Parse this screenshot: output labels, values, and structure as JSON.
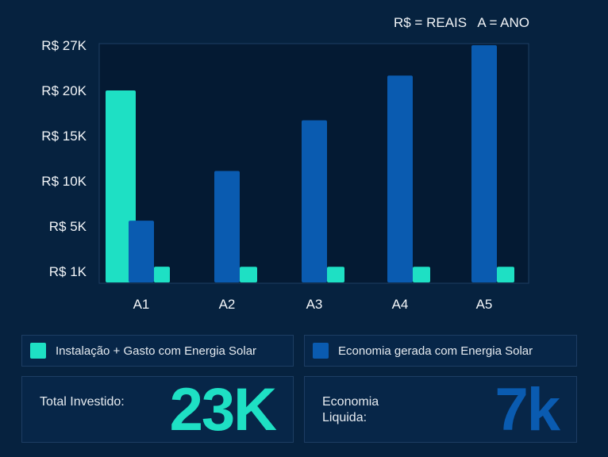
{
  "chart_data": {
    "type": "bar",
    "note": "R$ = REAIS   A = ANO",
    "categories": [
      "A1",
      "A2",
      "A3",
      "A4",
      "A5"
    ],
    "y_ticks": [
      "R$ 27K",
      "R$ 20K",
      "R$ 15K",
      "R$ 10K",
      "R$ 5K",
      "R$ 1K"
    ],
    "y_tick_values": [
      27,
      20,
      15,
      10,
      5,
      1
    ],
    "ylim": [
      1,
      27
    ],
    "grid": false,
    "legend_position": "bottom",
    "series": [
      {
        "name": "Instalação + Gasto com Energia Solar",
        "color": "#1ee0c4",
        "values": [
          20,
          1.4,
          1.4,
          1.4,
          1.4
        ]
      },
      {
        "name": "Economia gerada com Energia Solar",
        "color": "#0a5bb0",
        "values": [
          5.6,
          11.1,
          16.7,
          22.3,
          27
        ]
      }
    ]
  },
  "stats": {
    "invested": {
      "label": "Total Investido:",
      "value": "23K",
      "color": "#1ee0c4"
    },
    "net": {
      "label": "Economia Liquida:",
      "value": "7k",
      "color": "#0a5bb0"
    }
  }
}
